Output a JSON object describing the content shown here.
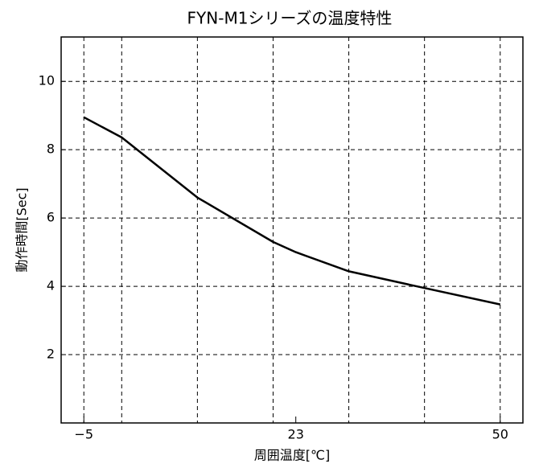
{
  "chart_data": {
    "type": "line",
    "title": "FYN-M1シリーズの温度特性",
    "x_label": "周囲温度[℃]",
    "y_label": "動作時間[Sec]",
    "x": [
      -5,
      0,
      10,
      20,
      23,
      30,
      40,
      50
    ],
    "series": [
      {
        "name": "FYN-M1",
        "color": "#000000",
        "values": [
          8.95,
          8.36,
          6.6,
          5.3,
          5.0,
          4.44,
          3.95,
          3.47
        ]
      }
    ],
    "xlim": [
      -8,
      53
    ],
    "ylim": [
      0,
      11.3
    ],
    "xticks": [
      {
        "value": -5,
        "label": "−5"
      },
      23,
      50
    ],
    "yticks": [
      2,
      4,
      6,
      8,
      10
    ],
    "xgrid": [
      -5,
      0,
      10,
      20,
      30,
      40,
      50
    ],
    "grid": true
  }
}
